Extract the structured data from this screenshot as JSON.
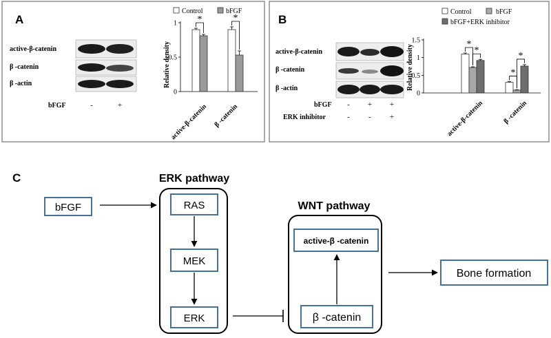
{
  "panel_a": {
    "letter": "A",
    "blot_labels": [
      "active-β-catenin",
      "β -catenin",
      "β -actin"
    ],
    "treatment_label": "bFGF",
    "treatment_signs": [
      "-",
      "+"
    ],
    "chart_data": {
      "type": "bar",
      "categories": [
        "active-β-catenin",
        "β -catenin"
      ],
      "series": [
        {
          "name": "Control",
          "values": [
            0.9,
            0.9
          ],
          "errors": [
            0.02,
            0.04
          ]
        },
        {
          "name": "bFGF",
          "values": [
            0.81,
            0.53
          ],
          "errors": [
            0.02,
            0.06
          ]
        }
      ],
      "ylabel": "Relative density",
      "ylim": [
        0,
        1
      ],
      "yticks": [
        "0",
        "0.5",
        "1"
      ],
      "significance": [
        "*",
        "*"
      ],
      "legend": [
        "Control",
        "bFGF"
      ],
      "legend_position": "top",
      "colors": [
        "#ffffff",
        "#9a9a9a"
      ]
    }
  },
  "panel_b": {
    "letter": "B",
    "blot_labels": [
      "active-β-catenin",
      "β -catenin",
      "β -actin"
    ],
    "treatments": [
      {
        "label": "bFGF",
        "signs": [
          "-",
          "+",
          "+"
        ]
      },
      {
        "label": "ERK inhibitor",
        "signs": [
          "-",
          "-",
          "+"
        ]
      }
    ],
    "chart_data": {
      "type": "bar",
      "categories": [
        "active-β-catenin",
        "β -catenin"
      ],
      "series": [
        {
          "name": "Control",
          "values": [
            1.1,
            0.3
          ],
          "errors": [
            0.03,
            0.02
          ]
        },
        {
          "name": "bFGF",
          "values": [
            0.72,
            0.08
          ],
          "errors": [
            0.02,
            0.01
          ]
        },
        {
          "name": "bFGF+ERK inhibitor",
          "values": [
            0.92,
            0.76
          ],
          "errors": [
            0.03,
            0.04
          ]
        }
      ],
      "ylabel": "Relative density",
      "ylim": [
        0,
        1.5
      ],
      "yticks": [
        "0",
        "0.5",
        "1",
        "1.5"
      ],
      "significance": [
        "*",
        "*",
        "*",
        "*"
      ],
      "legend": [
        "Control",
        "bFGF",
        "bFGF+ERK inhibitor"
      ],
      "legend_position": "top",
      "colors": [
        "#ffffff",
        "#a8a8a8",
        "#6e6e6e"
      ]
    }
  },
  "panel_c": {
    "letter": "C",
    "erk_title": "ERK  pathway",
    "wnt_title": "WNT pathway",
    "input": "bFGF",
    "erk_steps": [
      "RAS",
      "MEK",
      "ERK"
    ],
    "wnt_top": "active-β -catenin",
    "wnt_bottom": "β -catenin",
    "output": "Bone formation",
    "box_color": "#41719c"
  }
}
